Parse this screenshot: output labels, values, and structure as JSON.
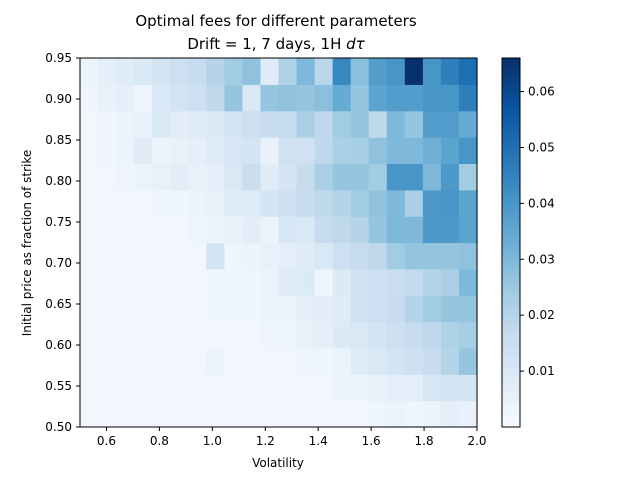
{
  "chart_data": {
    "type": "heatmap",
    "title": "Optimal fees for different parameters",
    "subtitle_prefix": "Drift = 1, 7 days, 1H ",
    "subtitle_symbol": "dτ",
    "xlabel": "Volatility",
    "ylabel": "Initial price as fraction of strike",
    "colormap": "Blues",
    "xlim": [
      0.5,
      2.0
    ],
    "ylim": [
      0.5,
      0.95
    ],
    "x_ticks": [
      0.6,
      0.8,
      1.0,
      1.2,
      1.4,
      1.6,
      1.8,
      2.0
    ],
    "x_tick_labels": [
      "0.6",
      "0.8",
      "1.0",
      "1.2",
      "1.4",
      "1.6",
      "1.8",
      "2.0"
    ],
    "y_ticks": [
      0.5,
      0.55,
      0.6,
      0.65,
      0.7,
      0.75,
      0.8,
      0.85,
      0.9,
      0.95
    ],
    "y_tick_labels": [
      "0.50",
      "0.55",
      "0.60",
      "0.65",
      "0.70",
      "0.75",
      "0.80",
      "0.85",
      "0.90",
      "0.95"
    ],
    "colorbar_ticks": [
      0.01,
      0.02,
      0.03,
      0.04,
      0.05,
      0.06
    ],
    "colorbar_tick_labels": [
      "0.01",
      "0.02",
      "0.03",
      "0.04",
      "0.05",
      "0.06"
    ],
    "vmin": 0.0,
    "vmax": 0.066,
    "values": [
      [
        0.002,
        0.002,
        0.002,
        0.002,
        0.002,
        0.002,
        0.002,
        0.002,
        0.002,
        0.002,
        0.002,
        0.002,
        0.002,
        0.002,
        0.002,
        0.002,
        0.003,
        0.004,
        0.003,
        0.004,
        0.006,
        0.005
      ],
      [
        0.002,
        0.002,
        0.002,
        0.002,
        0.002,
        0.002,
        0.002,
        0.002,
        0.002,
        0.002,
        0.002,
        0.002,
        0.002,
        0.002,
        0.004,
        0.004,
        0.005,
        0.006,
        0.006,
        0.011,
        0.012,
        0.012
      ],
      [
        0.002,
        0.002,
        0.002,
        0.002,
        0.002,
        0.002,
        0.002,
        0.004,
        0.002,
        0.002,
        0.002,
        0.002,
        0.003,
        0.003,
        0.004,
        0.008,
        0.01,
        0.012,
        0.014,
        0.016,
        0.02,
        0.026
      ],
      [
        0.002,
        0.002,
        0.002,
        0.002,
        0.002,
        0.002,
        0.002,
        0.002,
        0.002,
        0.002,
        0.003,
        0.003,
        0.005,
        0.006,
        0.009,
        0.01,
        0.012,
        0.014,
        0.016,
        0.018,
        0.021,
        0.023
      ],
      [
        0.002,
        0.002,
        0.002,
        0.002,
        0.002,
        0.002,
        0.002,
        0.003,
        0.003,
        0.003,
        0.004,
        0.004,
        0.006,
        0.007,
        0.008,
        0.013,
        0.014,
        0.016,
        0.02,
        0.024,
        0.026,
        0.026
      ],
      [
        0.002,
        0.002,
        0.002,
        0.002,
        0.002,
        0.002,
        0.002,
        0.003,
        0.003,
        0.003,
        0.004,
        0.008,
        0.009,
        0.003,
        0.009,
        0.013,
        0.014,
        0.015,
        0.017,
        0.02,
        0.022,
        0.03
      ],
      [
        0.002,
        0.002,
        0.002,
        0.002,
        0.002,
        0.002,
        0.002,
        0.012,
        0.003,
        0.004,
        0.005,
        0.006,
        0.008,
        0.01,
        0.014,
        0.016,
        0.018,
        0.024,
        0.026,
        0.026,
        0.026,
        0.027
      ],
      [
        0.002,
        0.002,
        0.002,
        0.002,
        0.002,
        0.002,
        0.003,
        0.004,
        0.005,
        0.007,
        0.004,
        0.011,
        0.01,
        0.016,
        0.018,
        0.02,
        0.026,
        0.03,
        0.03,
        0.039,
        0.039,
        0.036
      ],
      [
        0.002,
        0.002,
        0.002,
        0.002,
        0.003,
        0.003,
        0.004,
        0.005,
        0.008,
        0.008,
        0.012,
        0.014,
        0.016,
        0.018,
        0.02,
        0.024,
        0.027,
        0.03,
        0.022,
        0.039,
        0.04,
        0.036
      ],
      [
        0.002,
        0.002,
        0.003,
        0.004,
        0.005,
        0.007,
        0.005,
        0.006,
        0.01,
        0.015,
        0.008,
        0.012,
        0.016,
        0.022,
        0.026,
        0.026,
        0.024,
        0.04,
        0.04,
        0.03,
        0.039,
        0.024
      ],
      [
        0.002,
        0.003,
        0.004,
        0.008,
        0.004,
        0.005,
        0.006,
        0.008,
        0.011,
        0.012,
        0.005,
        0.013,
        0.013,
        0.018,
        0.022,
        0.023,
        0.027,
        0.03,
        0.03,
        0.032,
        0.036,
        0.04
      ],
      [
        0.002,
        0.003,
        0.004,
        0.005,
        0.01,
        0.007,
        0.008,
        0.009,
        0.012,
        0.014,
        0.016,
        0.016,
        0.022,
        0.018,
        0.024,
        0.026,
        0.018,
        0.03,
        0.026,
        0.038,
        0.038,
        0.034
      ],
      [
        0.003,
        0.005,
        0.006,
        0.003,
        0.01,
        0.012,
        0.014,
        0.018,
        0.026,
        0.01,
        0.026,
        0.027,
        0.026,
        0.028,
        0.034,
        0.026,
        0.036,
        0.038,
        0.038,
        0.04,
        0.04,
        0.046
      ],
      [
        0.004,
        0.006,
        0.008,
        0.01,
        0.012,
        0.014,
        0.016,
        0.02,
        0.024,
        0.027,
        0.008,
        0.021,
        0.03,
        0.019,
        0.044,
        0.028,
        0.038,
        0.04,
        0.066,
        0.04,
        0.046,
        0.05
      ]
    ]
  }
}
